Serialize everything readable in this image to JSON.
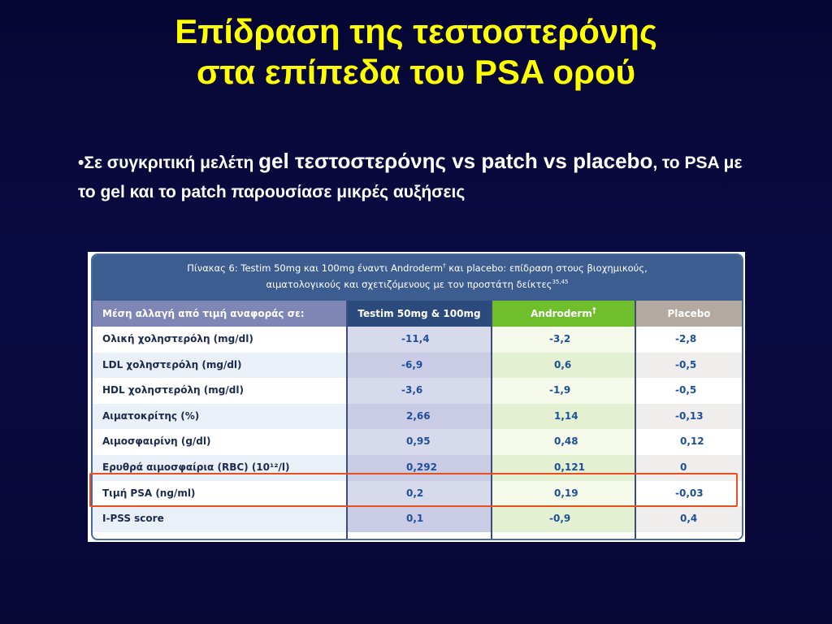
{
  "slide": {
    "title_line1": "Επίδραση της τεστοστερόνης",
    "title_line2": "στα επίπεδα του PSA ορού",
    "bullet": {
      "marker": "•",
      "part1": "Σε συγκριτική μελέτη ",
      "part2": "gel τεστοστερόνης vs patch vs placebo",
      "part3": ", το PSA με το gel και το patch παρουσίασε μικρές αυξήσεις"
    }
  },
  "table": {
    "caption_line1_a": "Πίνακας 6: Testim 50mg και 100mg έναντι Androderm",
    "caption_line1_sup": "†",
    "caption_line1_b": " και placebo: επίδραση στους βιοχημικούς,",
    "caption_line2": "αιματολογικούς και σχετιζόμενους με τον προστάτη δείκτες",
    "caption_line2_sup": "35,45",
    "headers": {
      "label": "Μέση αλλαγή από τιμή αναφοράς σε:",
      "testim": "Testim 50mg & 100mg",
      "androderm": "Androderm",
      "androderm_sup": "†",
      "placebo": "Placebo"
    },
    "rows": [
      {
        "label": "Ολική χοληστερόλη (mg/dl)",
        "testim": "-11,4",
        "androderm": "-3,2",
        "placebo": "-2,8"
      },
      {
        "label": "LDL χοληστερόλη (mg/dl)",
        "testim": "-6,9",
        "androderm": "0,6",
        "placebo": "-0,5"
      },
      {
        "label": "HDL χοληστερόλη (mg/dl)",
        "testim": "-3,6",
        "androderm": "-1,9",
        "placebo": "-0,5"
      },
      {
        "label": "Αιματοκρίτης (%)",
        "testim": "2,66",
        "androderm": "1,14",
        "placebo": "-0,13"
      },
      {
        "label": "Αιμοσφαιρίνη (g/dl)",
        "testim": "0,95",
        "androderm": "0,48",
        "placebo": "0,12"
      },
      {
        "label": "Ερυθρά αιμοσφαίρια (RBC) (10¹²/l)",
        "testim": "0,292",
        "androderm": "0,121",
        "placebo": "0"
      },
      {
        "label": "Τιμή PSA (ng/ml)",
        "testim": "0,2",
        "androderm": "0,19",
        "placebo": "-0,03"
      },
      {
        "label": "I-PSS score",
        "testim": "0,1",
        "androderm": "-0,9",
        "placebo": "0,4"
      }
    ],
    "highlighted_row": "Τιμή PSA (ng/ml)"
  },
  "colors": {
    "background": "#0a0a3c",
    "title": "#ffff00",
    "highlight": "#e8501e",
    "androderm_header": "#6fbe2b",
    "testim_header": "#2d4a7d"
  }
}
